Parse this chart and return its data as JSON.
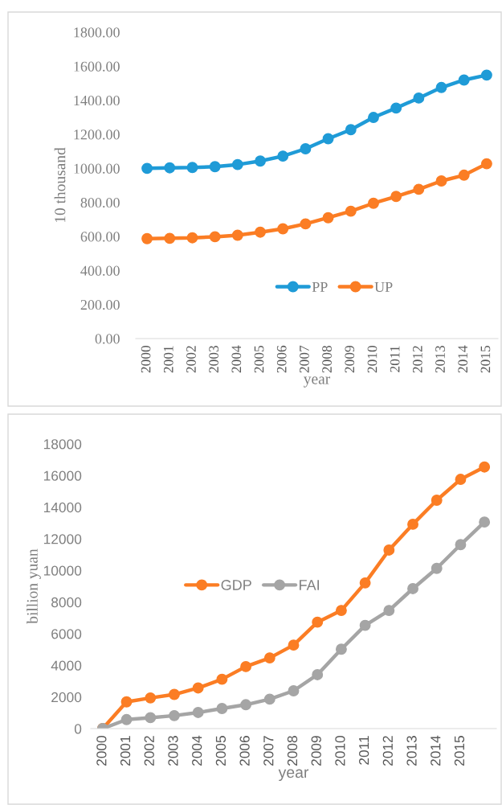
{
  "chart_data": [
    {
      "type": "line",
      "ylabel": "10 thousand",
      "xlabel": "year",
      "categories": [
        "2000",
        "2001",
        "2002",
        "2003",
        "2004",
        "2005",
        "2006",
        "2007",
        "2008",
        "2009",
        "2010",
        "2011",
        "2012",
        "2013",
        "2014",
        "2015"
      ],
      "series": [
        {
          "name": "PP",
          "color": "#1f9bd7",
          "values": [
            1000,
            1003,
            1005,
            1010,
            1022,
            1043,
            1072,
            1115,
            1174,
            1227,
            1299,
            1354,
            1413,
            1475,
            1519,
            1548
          ]
        },
        {
          "name": "UP",
          "color": "#fb7d24",
          "values": [
            587,
            589,
            592,
            598,
            607,
            625,
            645,
            674,
            710,
            748,
            795,
            835,
            877,
            926,
            960,
            1027
          ]
        }
      ],
      "ylim": [
        0,
        1800
      ],
      "yticks": [
        {
          "value": 0,
          "label": "0.00"
        },
        {
          "value": 200,
          "label": "200.00"
        },
        {
          "value": 400,
          "label": "400.00"
        },
        {
          "value": 600,
          "label": "600.00"
        },
        {
          "value": 800,
          "label": "800.00"
        },
        {
          "value": 1000,
          "label": "1000.00"
        },
        {
          "value": 1200,
          "label": "1200.00"
        },
        {
          "value": 1400,
          "label": "1400.00"
        },
        {
          "value": 1600,
          "label": "1600.00"
        },
        {
          "value": 1800,
          "label": "1800.00"
        }
      ],
      "grid": false,
      "legend": "bottom",
      "marker": "circle",
      "line_style": "solid"
    },
    {
      "type": "line",
      "ylabel": "billion yuan",
      "xlabel": "year",
      "categories": [
        "2000",
        "2001",
        "2002",
        "2003",
        "2004",
        "2005",
        "2006",
        "2007",
        "2008",
        "2009",
        "2010",
        "2011",
        "2012",
        "2013",
        "2014",
        "2015",
        null
      ],
      "series": [
        {
          "name": "GDP",
          "color": "#fb7d24",
          "values": [
            0,
            1690,
            1940,
            2160,
            2570,
            3120,
            3920,
            4470,
            5280,
            6730,
            7470,
            9210,
            11290,
            12920,
            14440,
            15760,
            16540
          ]
        },
        {
          "name": "FAI",
          "color": "#a5a5a5",
          "values": [
            0,
            570,
            690,
            820,
            1020,
            1270,
            1510,
            1860,
            2390,
            3410,
            5020,
            6530,
            7470,
            8850,
            10130,
            11630,
            13060
          ]
        }
      ],
      "ylim": [
        0,
        18000
      ],
      "yticks": [
        0,
        2000,
        4000,
        6000,
        8000,
        10000,
        12000,
        14000,
        16000,
        18000
      ],
      "grid": false,
      "legend": "center",
      "marker": "circle",
      "line_style": "solid"
    }
  ]
}
